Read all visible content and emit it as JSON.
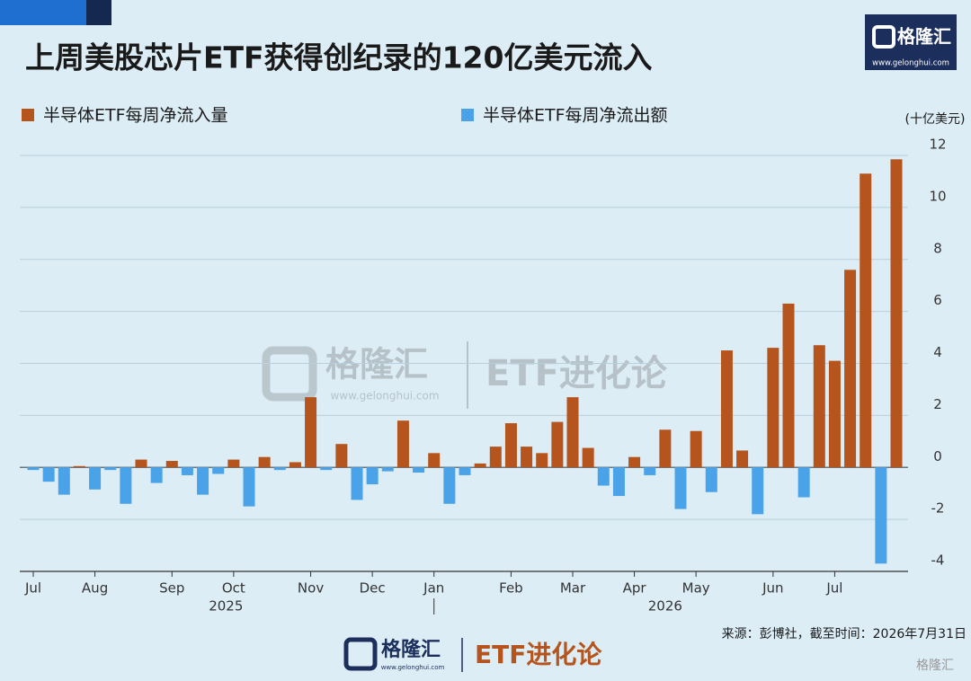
{
  "chart_data": {
    "type": "bar",
    "title": "上周美股芯片ETF获得创纪录的120亿美元流入",
    "y_axis_label": "(十亿美元)",
    "source": "来源：彭博社，截至时间：2026年7月31日",
    "categories": [
      "Jul",
      null,
      null,
      null,
      "Aug",
      null,
      null,
      null,
      null,
      "Sep",
      null,
      null,
      null,
      "Oct",
      null,
      null,
      null,
      null,
      "Nov",
      null,
      null,
      null,
      "Dec",
      null,
      null,
      null,
      "Jan",
      null,
      null,
      null,
      null,
      "Feb",
      null,
      null,
      null,
      "Mar",
      null,
      null,
      null,
      "Apr",
      null,
      null,
      null,
      "May",
      null,
      null,
      null,
      null,
      "Jun",
      null,
      null,
      null,
      "Jul",
      null,
      null,
      null,
      null
    ],
    "years": [
      "2025",
      "2026"
    ],
    "series": [
      {
        "name": "半导体ETF每周净流入量",
        "color": "#b5541c",
        "values": [
          null,
          null,
          null,
          0.05,
          null,
          null,
          null,
          0.3,
          null,
          0.25,
          null,
          null,
          null,
          0.3,
          null,
          0.4,
          null,
          0.2,
          2.7,
          null,
          0.9,
          null,
          null,
          null,
          1.8,
          null,
          0.55,
          null,
          null,
          0.15,
          0.8,
          1.7,
          0.8,
          0.55,
          1.75,
          2.7,
          0.75,
          null,
          null,
          0.4,
          null,
          1.45,
          null,
          1.4,
          null,
          4.5,
          0.65,
          null,
          4.6,
          6.3,
          null,
          4.7,
          4.1,
          7.6,
          11.3,
          null,
          11.85
        ]
      },
      {
        "name": "半导体ETF每周净流出额",
        "color": "#4aa3e8",
        "values": [
          -0.1,
          -0.55,
          -1.05,
          null,
          -0.85,
          -0.1,
          -1.4,
          null,
          -0.6,
          null,
          -0.3,
          -1.05,
          -0.25,
          null,
          -1.5,
          null,
          -0.1,
          null,
          null,
          -0.1,
          null,
          -1.25,
          -0.65,
          -0.15,
          null,
          -0.2,
          null,
          -1.4,
          -0.3,
          null,
          null,
          null,
          null,
          null,
          null,
          null,
          null,
          -0.7,
          -1.1,
          null,
          -0.3,
          null,
          -1.6,
          null,
          -0.95,
          null,
          null,
          -1.8,
          null,
          null,
          -1.15,
          null,
          null,
          null,
          null,
          -3.7,
          null
        ]
      }
    ],
    "ylim": [
      -4,
      12
    ],
    "yticks": [
      -4,
      -2,
      0,
      2,
      4,
      6,
      8,
      10,
      12
    ],
    "grid": true,
    "legend": "top"
  },
  "branding": {
    "header": {
      "logo": "格隆汇",
      "url": "www.gelonghui.com"
    },
    "watermark": {
      "logo": "格隆汇",
      "url": "www.gelonghui.com",
      "column": "ETF进化论"
    },
    "footer": {
      "logo": "格隆汇",
      "url": "www.gelonghui.com",
      "column": "ETF进化论"
    },
    "corner": "格隆汇"
  }
}
